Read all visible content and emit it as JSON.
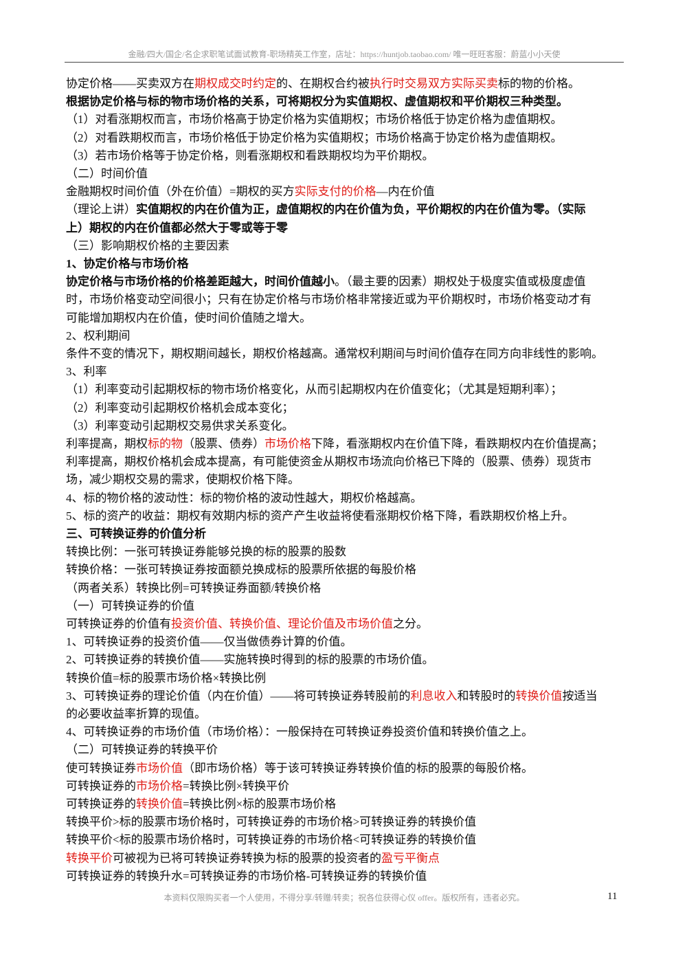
{
  "header": "金融/四大/国企/名企求职笔试面试教育-职场精英工作室，店址：https://huntjob.taobao.com/  唯一旺旺客服：蔚蓝小小天使",
  "lines": [
    [
      "协定价格——买卖双方在",
      {
        "text": "期权成交时约定",
        "style": "red"
      },
      "的、在期权合约被",
      {
        "text": "执行时交易双方实际买卖",
        "style": "red"
      },
      "标的物的价格。"
    ],
    [
      {
        "text": "根据协定价格与标的物市场价格的关系，可将期权分为实值期权、虚值期权和平价期权三种类型。",
        "style": "bold"
      }
    ],
    [
      "（1）对看涨期权而言，市场价格高于协定价格为实值期权；市场价格低于协定价格为虚值期权。"
    ],
    [
      "（2）对看跌期权而言，市场价格低于协定价格为实值期权；市场价格高于协定价格为虚值期权。"
    ],
    [
      "（3）若市场价格等于协定价格，则看涨期权和看跌期权均为平价期权。"
    ],
    [
      "（二）时间价值"
    ],
    [
      "金融期权时间价值（外在价值）=期权的买方",
      {
        "text": "实际支付的价格",
        "style": "red"
      },
      "—内在价值"
    ],
    [
      "（理论上讲）",
      {
        "text": "实值期权的内在价值为正，虚值期权的内在价值为负，平价期权的内在价值为零。（实际",
        "style": "bold"
      }
    ],
    [
      {
        "text": "上）期权的内在价值都必然大于零或等于零",
        "style": "bold"
      }
    ],
    [
      "（三）影响期权价格的主要因素"
    ],
    [
      {
        "text": "1、协定价格与市场价格",
        "style": "bold"
      }
    ],
    [
      {
        "text": "协定价格与市场价格的价格差距越大，时间价值越小",
        "style": "bold"
      },
      "。（最主要的因素）期权处于极度实值或极度虚值"
    ],
    [
      "时，市场价格变动空间很小；只有在协定价格与市场价格非常接近或为平价期权时，市场价格变动才有"
    ],
    [
      "可能增加期权内在价值，使时间价值随之增大。"
    ],
    [
      "2、权利期间"
    ],
    [
      "条件不变的情况下，期权期间越长，期权价格越高。通常权利期间与时间价值存在同方向非线性的影响。"
    ],
    [
      "3、利率"
    ],
    [
      "（1）利率变动引起期权标的物市场价格变化，从而引起期权内在价值变化；（尤其是短期利率）；"
    ],
    [
      "（2）利率变动引起期权价格机会成本变化；"
    ],
    [
      "（3）利率变动引起期权交易供求关系变化。"
    ],
    [
      "利率提高，期权",
      {
        "text": "标的物",
        "style": "red"
      },
      "（股票、债券）",
      {
        "text": "市场价格",
        "style": "red"
      },
      "下降，看涨期权内在价值下降，看跌期权内在价值提高；"
    ],
    [
      "利率提高，期权价格机会成本提高，有可能使资金从期权市场流向价格已下降的（股票、债券）现货市"
    ],
    [
      "场，减少期权交易的需求，使期权价格下降。"
    ],
    [
      "4、标的物价格的波动性：标的物价格的波动性越大，期权价格越高。"
    ],
    [
      "5、标的资产的收益：期权有效期内标的资产产生收益将使看涨期权价格下降，看跌期权价格上升。"
    ],
    [
      {
        "text": "三、可转换证券的价值分析",
        "style": "bold"
      }
    ],
    [
      "转换比例：一张可转换证券能够兑换的标的股票的股数"
    ],
    [
      "转换价格：一张可转换证券按面额兑换成标的股票所依据的每股价格"
    ],
    [
      "（两者关系）转换比例=可转换证券面额/转换价格"
    ],
    [
      "（一）可转换证券的价值"
    ],
    [
      "可转换证券的价值有",
      {
        "text": "投资价值、转换价值、理论价值及市场价值",
        "style": "red"
      },
      "之分。"
    ],
    [
      "1、可转换证券的投资价值——仅当做债券计算的价值。"
    ],
    [
      "2、可转换证券的转换价值——实施转换时得到的标的股票的市场价值。"
    ],
    [
      "转换价值=标的股票市场价格×转换比例"
    ],
    [
      "3、可转换证券的理论价值（内在价值）——将可转换证券转股前的",
      {
        "text": "利息收入",
        "style": "red"
      },
      "和转股时的",
      {
        "text": "转换价值",
        "style": "red"
      },
      "按适当"
    ],
    [
      "的必要收益率折算的现值。"
    ],
    [
      "4、可转换证券的市场价值（市场价格）：一般保持在可转换证券投资价值和转换价值之上。"
    ],
    [
      "（二）可转换证券的转换平价"
    ],
    [
      "使可转换证券",
      {
        "text": "市场价值",
        "style": "red"
      },
      "（即市场价格）等于该可转换证券转换价值的标的股票的每股价格。"
    ],
    [
      "可转换证券的",
      {
        "text": "市场价格",
        "style": "red"
      },
      "=转换比例×转换平价"
    ],
    [
      "可转换证券的",
      {
        "text": "转换价值",
        "style": "red"
      },
      "=转换比例×标的股票市场价格"
    ],
    [
      "转换平价>标的股票市场价格时，可转换证券的市场价格>可转换证券的转换价值"
    ],
    [
      "转换平价<标的股票市场价格时，可转换证券的市场价格<可转换证券的转换价值"
    ],
    [
      {
        "text": "转换平价",
        "style": "red"
      },
      "可被视为已将可转换证券转换为标的股票的投资者的",
      {
        "text": "盈亏平衡点",
        "style": "red"
      }
    ],
    [
      "可转换证券的转换升水=可转换证券的市场价格-可转换证券的转换价值"
    ]
  ],
  "footer": "本资料仅限购买者一个人使用，不得分享/转赠/转卖；祝各位获得心仪 offer。版权所有，违者必究。",
  "page_number": "11"
}
